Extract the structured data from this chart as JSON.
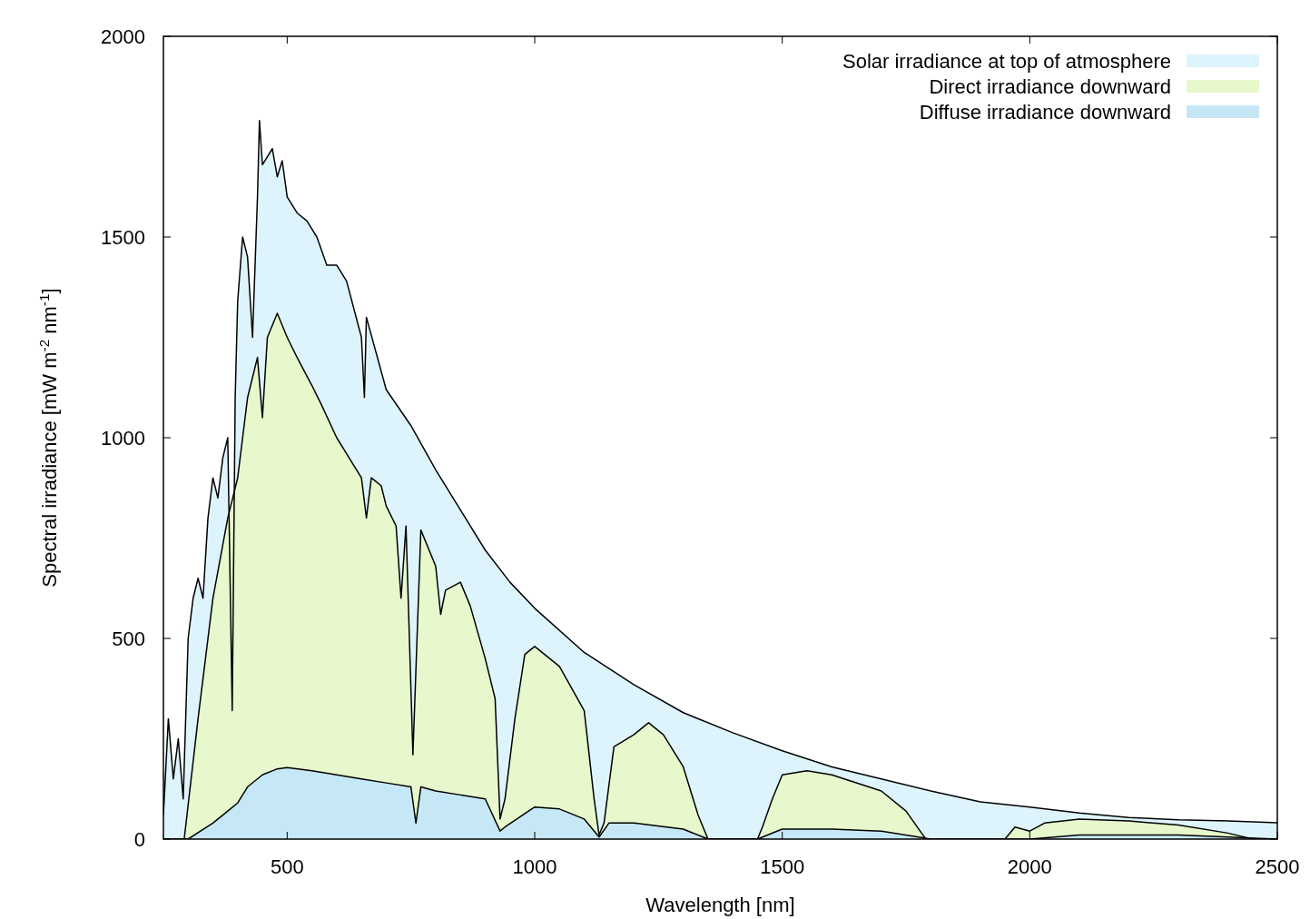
{
  "chart_data": {
    "type": "area",
    "xlabel": "Wavelength [nm]",
    "ylabel": "Spectral irradiance [mW m$^{-2}$ nm$^{-1}$]",
    "xlim": [
      250,
      2500
    ],
    "ylim": [
      0,
      2000
    ],
    "xticks": [
      500,
      1000,
      1500,
      2000,
      2500
    ],
    "yticks": [
      0,
      500,
      1000,
      1500,
      2000
    ],
    "grid": false,
    "legend": "top right",
    "series": [
      {
        "name": "Solar irradiance at top of atmosphere",
        "color": "#def4fc",
        "x": [
          250,
          260,
          270,
          280,
          290,
          300,
          310,
          320,
          330,
          340,
          350,
          360,
          370,
          380,
          389,
          395,
          400,
          410,
          420,
          430,
          440,
          444,
          450,
          460,
          470,
          480,
          490,
          500,
          520,
          540,
          560,
          580,
          600,
          620,
          650,
          656,
          660,
          700,
          750,
          800,
          850,
          900,
          950,
          1000,
          1100,
          1200,
          1300,
          1400,
          1500,
          1600,
          1700,
          1800,
          1900,
          2000,
          2100,
          2200,
          2300,
          2400,
          2500
        ],
        "values": [
          60,
          300,
          150,
          250,
          100,
          500,
          600,
          650,
          600,
          800,
          900,
          850,
          950,
          1000,
          320,
          1100,
          1340,
          1500,
          1450,
          1250,
          1600,
          1790,
          1680,
          1700,
          1720,
          1650,
          1690,
          1600,
          1560,
          1540,
          1500,
          1430,
          1430,
          1390,
          1250,
          1100,
          1300,
          1120,
          1030,
          920,
          820,
          720,
          640,
          575,
          465,
          385,
          315,
          265,
          220,
          180,
          150,
          120,
          93,
          80,
          65,
          54,
          48,
          45,
          41
        ]
      },
      {
        "name": "Direct irradiance downward",
        "color": "#e6f8cc",
        "x": [
          250,
          292,
          320,
          350,
          380,
          400,
          420,
          440,
          450,
          460,
          480,
          500,
          520,
          550,
          570,
          600,
          620,
          650,
          660,
          670,
          690,
          700,
          720,
          730,
          740,
          754,
          770,
          800,
          810,
          820,
          850,
          870,
          900,
          920,
          930,
          940,
          960,
          980,
          1000,
          1050,
          1100,
          1120,
          1130,
          1140,
          1160,
          1200,
          1230,
          1260,
          1300,
          1330,
          1350,
          1450,
          1460,
          1480,
          1500,
          1550,
          1600,
          1700,
          1750,
          1790,
          1950,
          1970,
          2000,
          2030,
          2100,
          2200,
          2300,
          2400,
          2450,
          2500
        ],
        "values": [
          0,
          0,
          300,
          600,
          800,
          900,
          1100,
          1200,
          1050,
          1250,
          1310,
          1250,
          1200,
          1130,
          1080,
          1000,
          960,
          900,
          800,
          900,
          880,
          830,
          780,
          600,
          780,
          210,
          770,
          680,
          560,
          620,
          640,
          580,
          450,
          350,
          50,
          100,
          300,
          460,
          480,
          430,
          320,
          100,
          10,
          40,
          230,
          260,
          290,
          260,
          180,
          60,
          0,
          0,
          30,
          100,
          160,
          170,
          160,
          120,
          70,
          0,
          0,
          30,
          20,
          40,
          50,
          45,
          35,
          15,
          0,
          0
        ]
      },
      {
        "name": "Diffuse irradiance downward",
        "color": "#c6e8f6",
        "x": [
          250,
          300,
          350,
          400,
          420,
          450,
          480,
          500,
          550,
          600,
          650,
          700,
          750,
          760,
          770,
          800,
          850,
          900,
          930,
          940,
          1000,
          1050,
          1100,
          1130,
          1150,
          1200,
          1300,
          1340,
          1350,
          1450,
          1500,
          1600,
          1700,
          1800,
          2000,
          2100,
          2300,
          2500
        ],
        "values": [
          0,
          0,
          40,
          90,
          130,
          160,
          175,
          178,
          170,
          160,
          150,
          140,
          130,
          40,
          130,
          120,
          110,
          100,
          20,
          30,
          80,
          75,
          50,
          5,
          40,
          40,
          25,
          5,
          0,
          0,
          25,
          25,
          20,
          0,
          0,
          10,
          10,
          0
        ]
      }
    ]
  }
}
